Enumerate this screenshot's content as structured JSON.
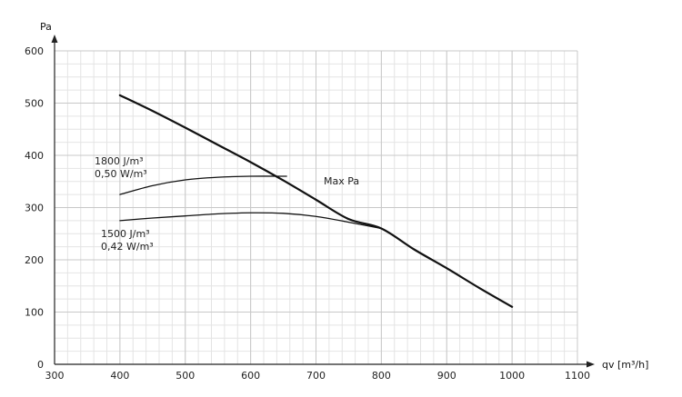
{
  "chart_data": {
    "type": "line",
    "title": "",
    "xlabel": "qv [m³/h]",
    "ylabel": "Pa",
    "xlim": [
      300,
      1100
    ],
    "ylim": [
      0,
      600
    ],
    "xticks": [
      300,
      400,
      500,
      600,
      700,
      800,
      900,
      1000,
      1100
    ],
    "yticks": [
      0,
      100,
      200,
      300,
      400,
      500,
      600
    ],
    "grid": true,
    "legend": "none",
    "series": [
      {
        "name": "Max Pa",
        "x": [
          400,
          450,
          500,
          550,
          600,
          650,
          700,
          750,
          800,
          850,
          900,
          950,
          1000
        ],
        "y": [
          515,
          485,
          453,
          420,
          387,
          352,
          315,
          278,
          260,
          220,
          184,
          146,
          110
        ]
      },
      {
        "name": "1800 J/m³ 0,50 W/m³",
        "x": [
          400,
          450,
          500,
          550,
          600,
          655
        ],
        "y": [
          325,
          342,
          353,
          358,
          360,
          360
        ]
      },
      {
        "name": "1500 J/m³ 0,42 W/m³",
        "x": [
          400,
          450,
          500,
          550,
          600,
          650,
          700,
          750,
          800
        ],
        "y": [
          275,
          280,
          284,
          288,
          290,
          289,
          283,
          272,
          260
        ]
      }
    ],
    "annotations": {
      "max_pa": "Max Pa",
      "curve_1800_line1": "1800 J/m³",
      "curve_1800_line2": "0,50 W/m³",
      "curve_1500_line1": "1500 J/m³",
      "curve_1500_line2": "0,42 W/m³"
    },
    "colors": {
      "line": "#111111",
      "grid_major": "#c8c8c8",
      "grid_minor": "#e4e4e4",
      "axis": "#222222"
    }
  }
}
